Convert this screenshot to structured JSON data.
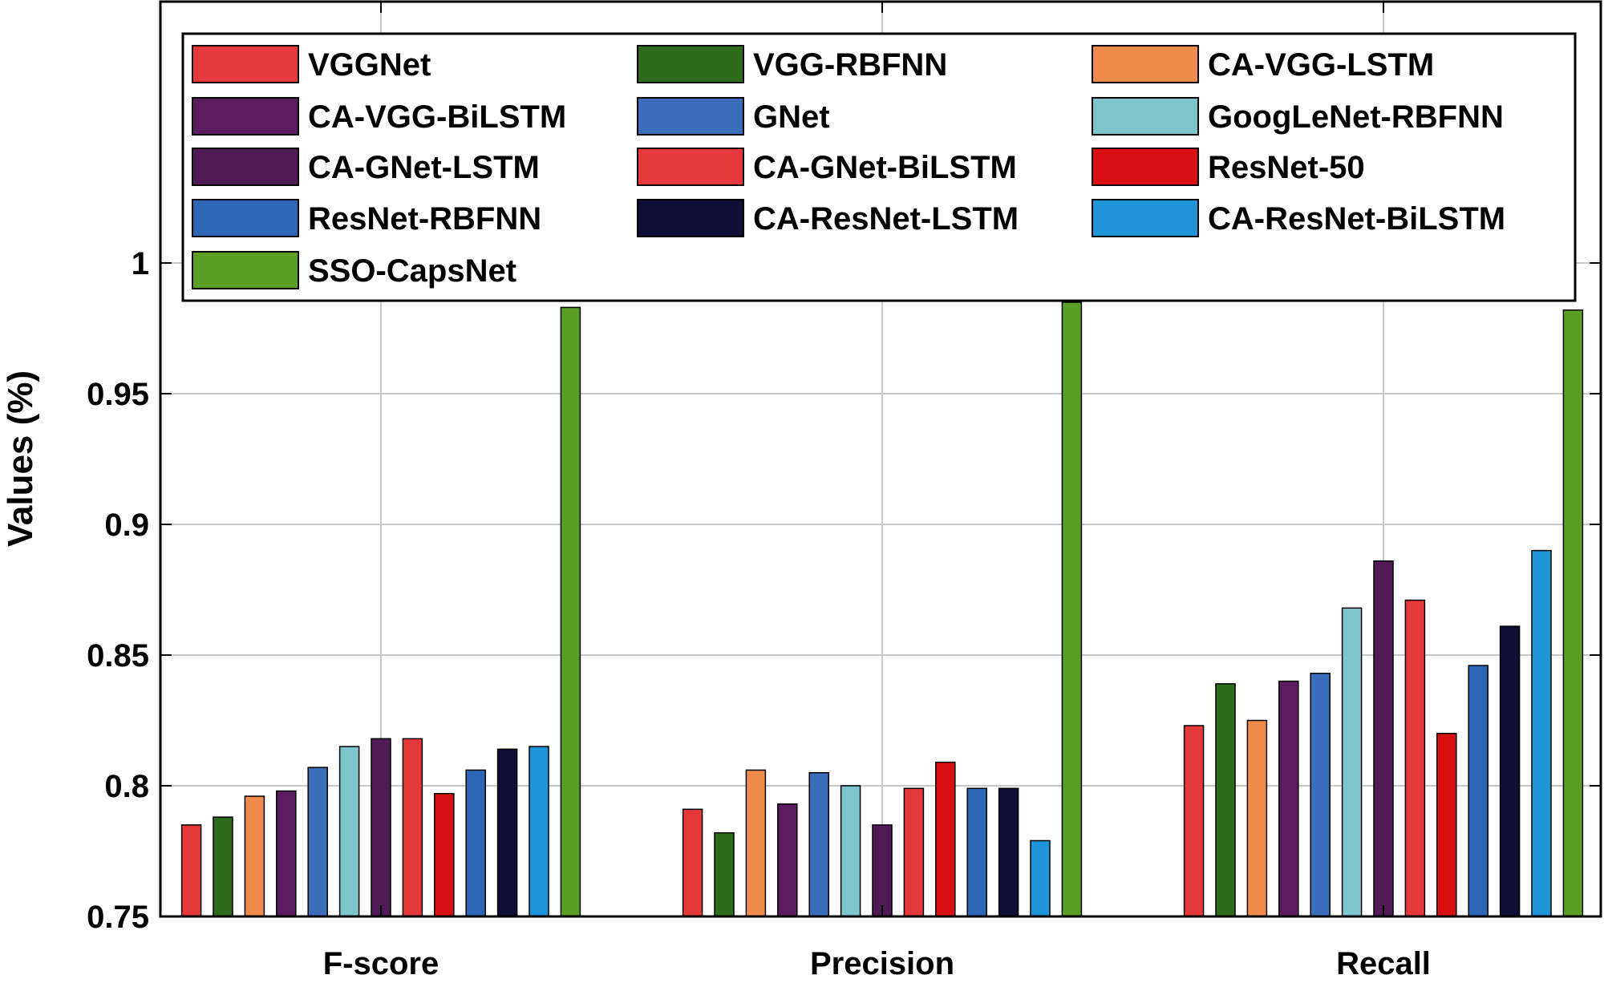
{
  "chart_data": {
    "type": "bar",
    "title": "",
    "xlabel": "",
    "ylabel": "Values (%)",
    "ylim": [
      0.75,
      1.1
    ],
    "yticks": [
      0.75,
      0.8,
      0.85,
      0.9,
      0.95,
      1
    ],
    "ytick_labels": [
      "0.75",
      "0.8",
      "0.85",
      "0.9",
      "0.95",
      "1"
    ],
    "grid": true,
    "legend_position": "top",
    "categories": [
      "F-score",
      "Precision",
      "Recall"
    ],
    "series": [
      {
        "name": "VGGNet",
        "color": "#e5383b",
        "values": [
          0.785,
          0.791,
          0.823
        ]
      },
      {
        "name": "VGG-RBFNN",
        "color": "#2f6b1d",
        "values": [
          0.788,
          0.782,
          0.839
        ]
      },
      {
        "name": "CA-VGG-LSTM",
        "color": "#ef8a4d",
        "values": [
          0.796,
          0.806,
          0.825
        ]
      },
      {
        "name": "CA-VGG-BiLSTM",
        "color": "#5a1c5e",
        "values": [
          0.798,
          0.793,
          0.84
        ]
      },
      {
        "name": "GNet",
        "color": "#3c6dbb",
        "values": [
          0.807,
          0.805,
          0.843
        ]
      },
      {
        "name": "GoogLeNet-RBFNN",
        "color": "#7ec4cc",
        "values": [
          0.815,
          0.8,
          0.868
        ]
      },
      {
        "name": "CA-GNet-LSTM",
        "color": "#4f1a55",
        "values": [
          0.818,
          0.785,
          0.886
        ]
      },
      {
        "name": "CA-GNet-BiLSTM",
        "color": "#e5383b",
        "values": [
          0.818,
          0.799,
          0.871
        ]
      },
      {
        "name": "ResNet-50",
        "color": "#d90f12",
        "values": [
          0.797,
          0.809,
          0.82
        ]
      },
      {
        "name": "ResNet-RBFNN",
        "color": "#2f65b5",
        "values": [
          0.806,
          0.799,
          0.846
        ]
      },
      {
        "name": "CA-ResNet-LSTM",
        "color": "#0d0d35",
        "values": [
          0.814,
          0.799,
          0.861
        ]
      },
      {
        "name": "CA-ResNet-BiLSTM",
        "color": "#1f94d8",
        "values": [
          0.815,
          0.779,
          0.89
        ]
      },
      {
        "name": "SSO-CapsNet",
        "color": "#5a9e26",
        "values": [
          0.983,
          0.985,
          0.982
        ]
      }
    ]
  }
}
